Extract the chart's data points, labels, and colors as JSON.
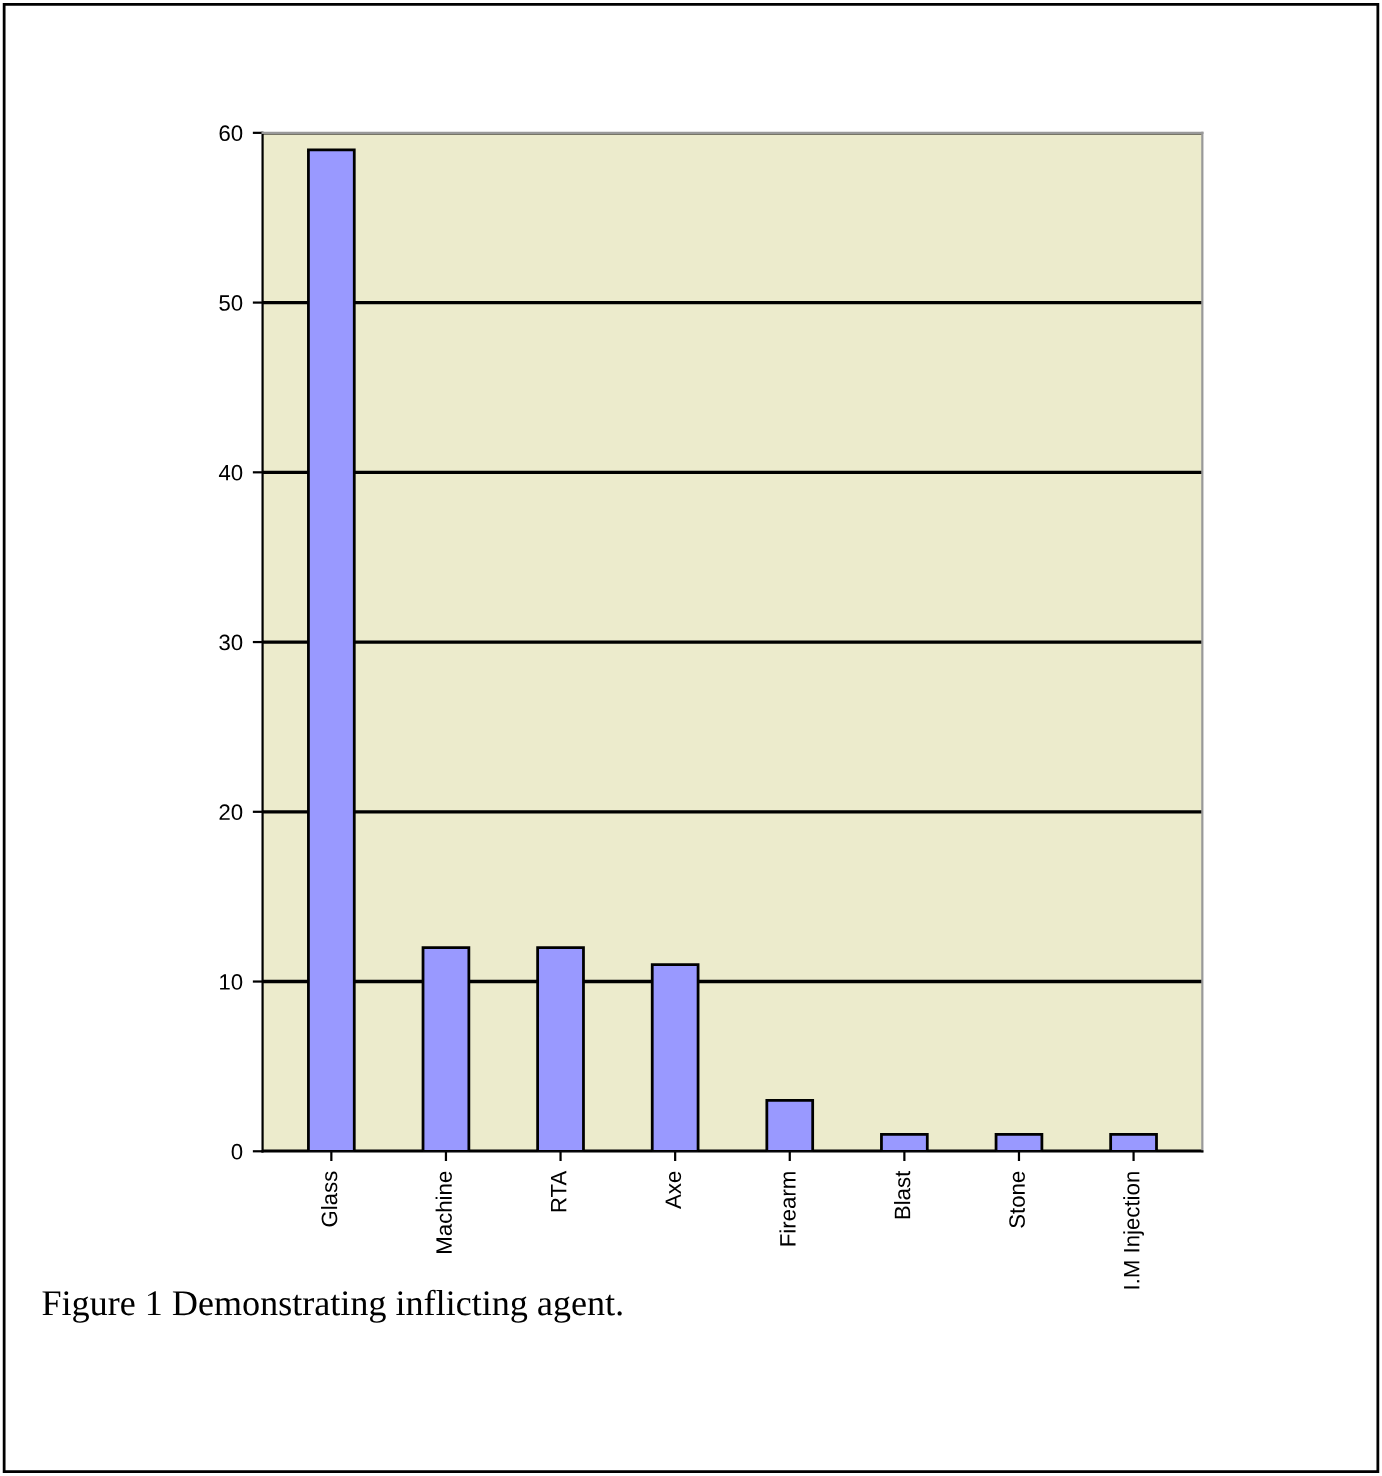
{
  "chart_data": {
    "type": "bar",
    "categories": [
      "Glass",
      "Machine",
      "RTA",
      "Axe",
      "Firearm",
      "Blast",
      "Stone",
      "I.M Injection"
    ],
    "values": [
      59,
      12,
      12,
      11,
      3,
      1,
      1,
      1
    ],
    "color": "#9999ff",
    "ylim": [
      0,
      60
    ],
    "yticks": [
      0,
      10,
      20,
      30,
      40,
      50,
      60
    ],
    "grid": "y",
    "annotations": [
      "Figure 1 Demonstrating inflicting agent."
    ]
  }
}
